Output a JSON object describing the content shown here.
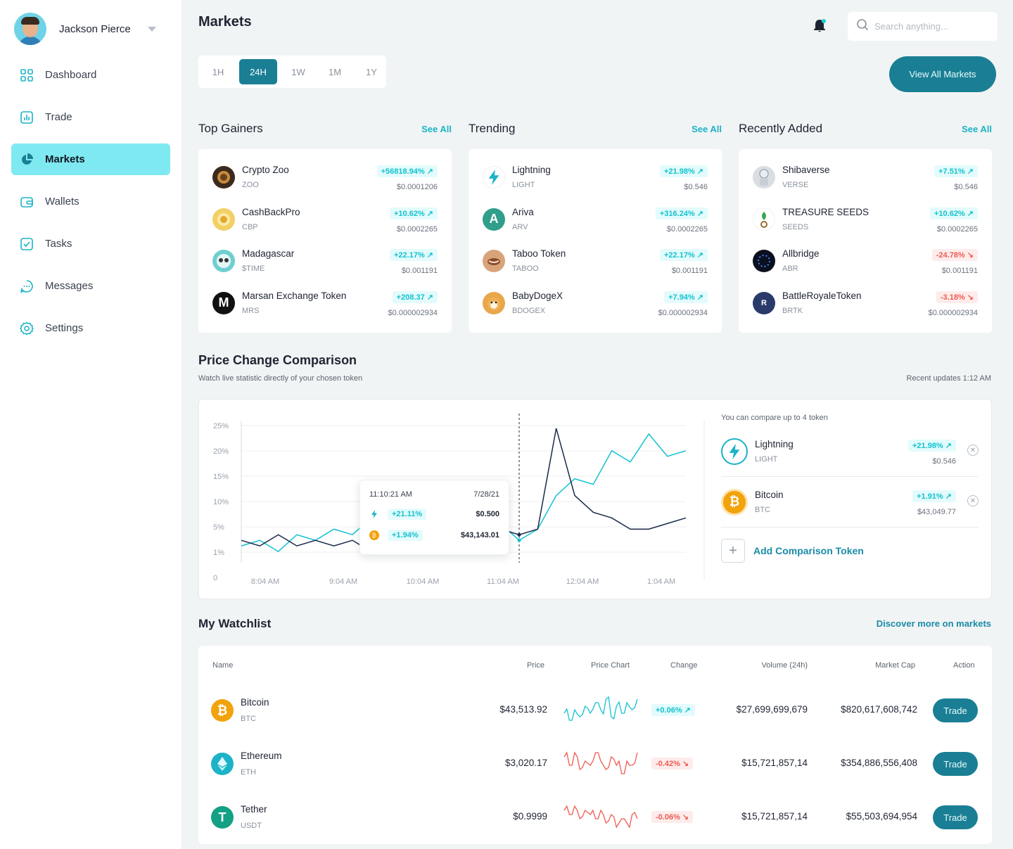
{
  "user": {
    "name": "Jackson Pierce"
  },
  "nav": [
    {
      "label": "Dashboard",
      "icon": "grid-icon",
      "active": false
    },
    {
      "label": "Trade",
      "icon": "chart-icon",
      "active": false
    },
    {
      "label": "Markets",
      "icon": "pie-icon",
      "active": true
    },
    {
      "label": "Wallets",
      "icon": "wallet-icon",
      "active": false
    },
    {
      "label": "Tasks",
      "icon": "check-icon",
      "active": false
    },
    {
      "label": "Messages",
      "icon": "message-icon",
      "active": false
    },
    {
      "label": "Settings",
      "icon": "gear-icon",
      "active": false
    }
  ],
  "header": {
    "title": "Markets",
    "search_placeholder": "Search anything..."
  },
  "timeframes": [
    "1H",
    "24H",
    "1W",
    "1M",
    "1Y"
  ],
  "active_timeframe": "24H",
  "view_all_label": "View All Markets",
  "sections": [
    {
      "title": "Top Gainers",
      "see_all": "See All",
      "tokens": [
        {
          "name": "Crypto Zoo",
          "symbol": "ZOO",
          "change": "+56818.94%",
          "dir": "up",
          "price": "$0.0001206",
          "color": "#3b2a1e"
        },
        {
          "name": "CashBackPro",
          "symbol": "CBP",
          "change": "+10.62%",
          "dir": "up",
          "price": "$0.0002265",
          "color": "#f2d066"
        },
        {
          "name": "Madagascar",
          "symbol": "$TIME",
          "change": "+22.17%",
          "dir": "up",
          "price": "$0.001191",
          "color": "#6fcfd0"
        },
        {
          "name": "Marsan Exchange Token",
          "symbol": "MRS",
          "change": "+208.37",
          "dir": "up",
          "price": "$0.000002934",
          "color": "#111111"
        }
      ]
    },
    {
      "title": "Trending",
      "see_all": "See All",
      "tokens": [
        {
          "name": "Lightning",
          "symbol": "LIGHT",
          "change": "+21.98%",
          "dir": "up",
          "price": "$0.546",
          "color": "#ffffff"
        },
        {
          "name": "Ariva",
          "symbol": "ARV",
          "change": "+316.24%",
          "dir": "up",
          "price": "$0.0002265",
          "color": "#2f9e8a"
        },
        {
          "name": "Taboo Token",
          "symbol": "TABOO",
          "change": "+22.17%",
          "dir": "up",
          "price": "$0.001191",
          "color": "#d9a37a"
        },
        {
          "name": "BabyDogeX",
          "symbol": "BDOGEX",
          "change": "+7.94%",
          "dir": "up",
          "price": "$0.000002934",
          "color": "#e9a64a"
        }
      ]
    },
    {
      "title": "Recently Added",
      "see_all": "See All",
      "tokens": [
        {
          "name": "Shibaverse",
          "symbol": "VERSE",
          "change": "+7.51%",
          "dir": "up",
          "price": "$0.546",
          "color": "#dadde2"
        },
        {
          "name": "TREASURE SEEDS",
          "symbol": "SEEDS",
          "change": "+10.62%",
          "dir": "up",
          "price": "$0.0002265",
          "color": "#ffffff"
        },
        {
          "name": "Allbridge",
          "symbol": "ABR",
          "change": "-24.78%",
          "dir": "down",
          "price": "$0.001191",
          "color": "#0b0f1e"
        },
        {
          "name": "BattleRoyaleToken",
          "symbol": "BRTK",
          "change": "-3.18%",
          "dir": "down",
          "price": "$0.000002934",
          "color": "#2a3a6a"
        }
      ]
    }
  ],
  "price_change": {
    "title": "Price Change Comparison",
    "subtitle": "Watch live statistic directly of your chosen token",
    "updates": "Recent updates 1:12 AM",
    "tooltip": {
      "time": "11:10:21 AM",
      "date": "7/28/21",
      "rows": [
        {
          "change": "+21.11%",
          "value": "$0.500",
          "color": "#1bb3c7"
        },
        {
          "change": "+1.94%",
          "value": "$43,143.01",
          "color": "#f2a20a"
        }
      ]
    },
    "compare_note": "You can compare up to 4 token",
    "compare": [
      {
        "name": "Lightning",
        "symbol": "LIGHT",
        "change": "+21.98%",
        "price": "$0.546",
        "color": "#1bb3c7"
      },
      {
        "name": "Bitcoin",
        "symbol": "BTC",
        "change": "+1.91%",
        "price": "$43,049.77",
        "color": "#f2a20a"
      }
    ],
    "add_label": "Add Comparison Token"
  },
  "chart_data": {
    "type": "line",
    "x": [
      "7:34 AM",
      "7:49 AM",
      "8:04 AM",
      "8:19 AM",
      "8:34 AM",
      "8:49 AM",
      "9:04 AM",
      "9:19 AM",
      "9:34 AM",
      "9:49 AM",
      "10:04 AM",
      "10:19 AM",
      "10:34 AM",
      "10:49 AM",
      "11:04 AM",
      "11:10 AM",
      "11:19 AM",
      "11:34 AM",
      "11:49 AM",
      "12:04 PM",
      "12:19 PM",
      "12:34 PM",
      "12:49 PM",
      "1:04 AM",
      "1:19 AM"
    ],
    "series": [
      {
        "values": [
          3,
          4,
          2,
          5,
          4,
          6,
          5,
          8,
          6,
          11,
          7,
          6,
          4,
          6,
          7,
          4,
          6,
          12,
          15,
          14,
          20,
          18,
          23,
          19,
          20
        ]
      },
      {
        "values": [
          4,
          3,
          5,
          3,
          4,
          3,
          4,
          2,
          4,
          3,
          6,
          5,
          7,
          5,
          6,
          5,
          6,
          24,
          12,
          9,
          8,
          6,
          6,
          7,
          8
        ]
      }
    ],
    "yticks": [
      "25%",
      "20%",
      "15%",
      "10%",
      "5%",
      "1%",
      "0"
    ],
    "xticks": [
      "8:04 AM",
      "9:04 AM",
      "10:04 AM",
      "11:04 AM",
      "12:04 AM",
      "1:04 AM"
    ],
    "ylim": [
      0,
      25
    ]
  },
  "watchlist": {
    "title": "My Watchlist",
    "link": "Discover more on markets",
    "headers": {
      "name": "Name",
      "price": "Price",
      "chart": "Price Chart",
      "change": "Change",
      "volume": "Volume (24h)",
      "cap": "Market Cap",
      "action": "Action"
    },
    "rows": [
      {
        "name": "Bitcoin",
        "symbol": "BTC",
        "price": "$43,513.92",
        "change": "+0.06%",
        "dir": "up",
        "volume": "$27,699,699,679",
        "cap": "$820,617,608,742",
        "action": "Trade",
        "color": "#f2a20a",
        "spark": [
          5,
          3,
          6,
          4,
          7,
          5,
          8,
          6,
          9,
          4,
          7,
          5,
          8,
          6,
          9
        ]
      },
      {
        "name": "Ethereum",
        "symbol": "ETH",
        "price": "$3,020.17",
        "change": "-0.42%",
        "dir": "down",
        "volume": "$15,721,857,14",
        "cap": "$354,886,556,408",
        "action": "Trade",
        "color": "#1bb3c7",
        "spark": [
          7,
          5,
          8,
          4,
          6,
          5,
          8,
          6,
          4,
          7,
          5,
          3,
          6,
          5,
          8
        ]
      },
      {
        "name": "Tether",
        "symbol": "USDT",
        "price": "$0.9999",
        "change": "-0.06%",
        "dir": "down",
        "volume": "$15,721,857,14",
        "cap": "$55,503,694,954",
        "action": "Trade",
        "color": "#14a085",
        "spark": [
          7,
          6,
          8,
          5,
          7,
          6,
          5,
          7,
          4,
          6,
          3,
          5,
          4,
          6,
          5
        ]
      }
    ]
  }
}
